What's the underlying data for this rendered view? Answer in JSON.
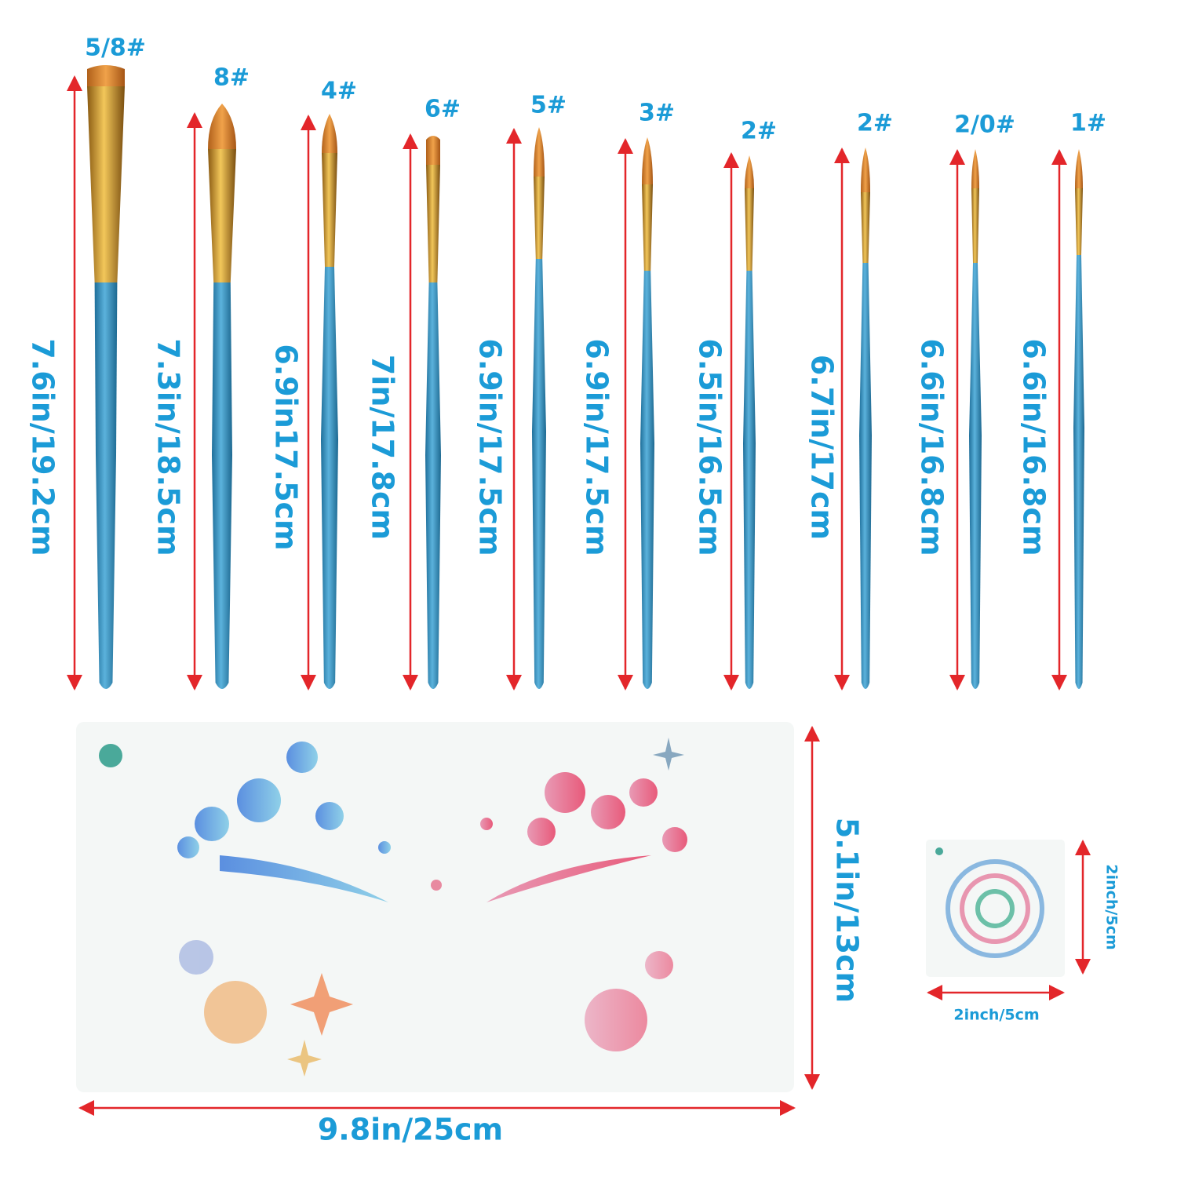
{
  "brushes": [
    {
      "size": "5/8#",
      "length": "7.6in/19.2cm"
    },
    {
      "size": "8#",
      "length": "7.3in/18.5cm"
    },
    {
      "size": "4#",
      "length": "6.9in17.5cm"
    },
    {
      "size": "6#",
      "length": "7in/17.8cm"
    },
    {
      "size": "5#",
      "length": "6.9in/17.5cm"
    },
    {
      "size": "3#",
      "length": "6.9in/17.5cm"
    },
    {
      "size": "2#",
      "length": "6.5in/16.5cm"
    },
    {
      "size": "2#",
      "length": "6.7in/17cm"
    },
    {
      "size": "2/0#",
      "length": "6.6in/16.8cm"
    },
    {
      "size": "1#",
      "length": "6.6in/16.8cm"
    }
  ],
  "stencil": {
    "width": "9.8in/25cm",
    "height": "5.1in/13cm"
  },
  "small_stencil": {
    "width": "2inch/5cm",
    "height": "2inch/5cm"
  }
}
